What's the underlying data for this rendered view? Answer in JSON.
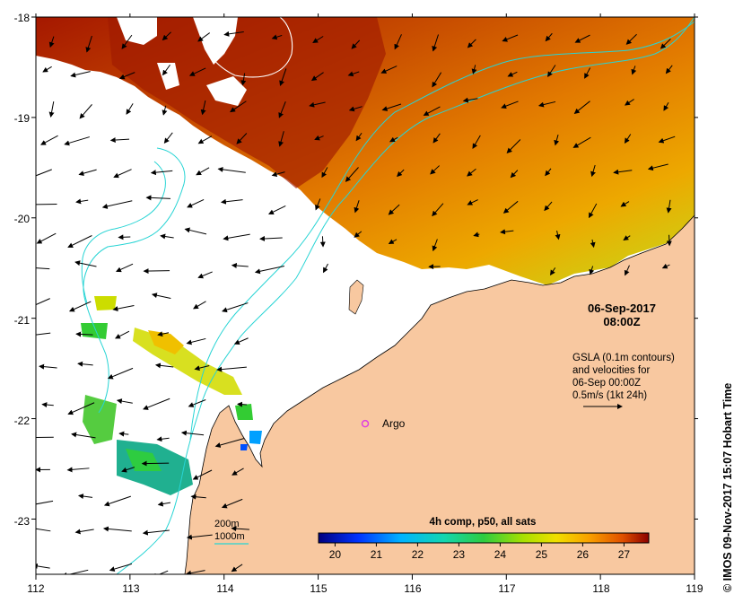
{
  "map": {
    "lon_ticks": [
      "112",
      "113",
      "114",
      "115",
      "116",
      "117",
      "118",
      "119"
    ],
    "lat_ticks": [
      "-18",
      "-19",
      "-20",
      "-21",
      "-22",
      "-23"
    ],
    "lon_range": [
      112,
      119
    ],
    "lat_range": [
      -23.55,
      -18
    ]
  },
  "header": {
    "date": "06-Sep-2017",
    "time": "08:00Z"
  },
  "info": {
    "line1": "GSLA (0.1m contours)",
    "line2": "and velocities for",
    "line3": "06-Sep 00:00Z",
    "line4": "0.5m/s (1kt 24h)"
  },
  "argo": {
    "label": "Argo",
    "lon": 115.5,
    "lat": -22.05,
    "marker_color": "#e040e0"
  },
  "legend": {
    "isobath_1": "200m",
    "isobath_2": "1000m",
    "isobath_color": "#27d4d4"
  },
  "colorbar": {
    "title": "4h comp, p50, all sats",
    "ticks": [
      "20",
      "21",
      "22",
      "23",
      "24",
      "25",
      "26",
      "27"
    ],
    "range": [
      19.6,
      27.6
    ],
    "colors": [
      "#00007f",
      "#0040ff",
      "#00bfff",
      "#19d8a0",
      "#33cc33",
      "#ccdd00",
      "#f9a600",
      "#e06000",
      "#8b0000"
    ]
  },
  "credit": "© IMOS 09-Nov-2017 15:07 Hobart Time",
  "colors": {
    "land": "#f8c8a0",
    "sst_warm": "#b83000",
    "sst_mid": "#e07a00",
    "sst_cool": "#f2c000"
  }
}
